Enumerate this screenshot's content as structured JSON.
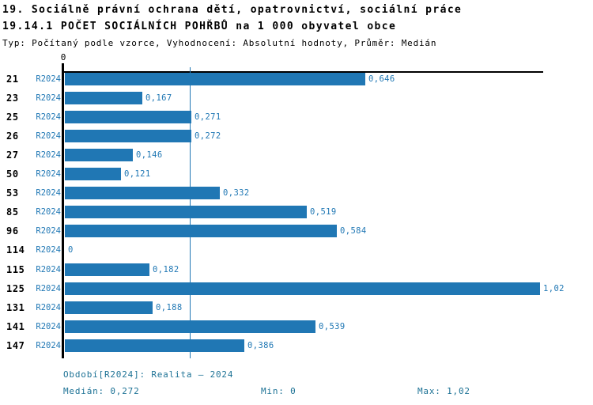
{
  "title": {
    "line1": "19. Sociálně právní ochrana dětí, opatrovnictví, sociální práce",
    "line2": "19.14.1 POČET SOCIÁLNÍCH POHŘBŮ na 1 000 obyvatel obce",
    "line3": "Typ: Počítaný podle vzorce, Vyhodnocení: Absolutní hodnoty, Průměr: Medián"
  },
  "chart_data": {
    "type": "bar",
    "orientation": "horizontal",
    "series_label": "R2024",
    "categories": [
      "21",
      "23",
      "25",
      "26",
      "27",
      "50",
      "53",
      "85",
      "96",
      "114",
      "115",
      "125",
      "131",
      "141",
      "147"
    ],
    "values": [
      0.646,
      0.167,
      0.271,
      0.272,
      0.146,
      0.121,
      0.332,
      0.519,
      0.584,
      0,
      0.182,
      1.02,
      0.188,
      0.539,
      0.386
    ],
    "value_labels": [
      "0,646",
      "0,167",
      "0,271",
      "0,272",
      "0,146",
      "0,121",
      "0,332",
      "0,519",
      "0,584",
      "0",
      "0,182",
      "1,02",
      "0,188",
      "0,539",
      "0,386"
    ],
    "x_axis_tick_labels": [
      "0"
    ],
    "xlim": [
      0,
      1.03
    ],
    "median_value": 0.272,
    "grid": false,
    "legend_position": "none",
    "bar_color": "#2077b4",
    "median_line_color": "#2077b4"
  },
  "footer": {
    "period": "Období[R2024]: Realita – 2024",
    "median_label": "Medián: 0,272",
    "min_label": "Min: 0",
    "max_label": "Max: 1,02"
  },
  "colors": {
    "bar_blue": "#2077b4",
    "text_blue": "#1f77b4",
    "footer_teal": "#1d7295",
    "axis_black": "#000000"
  }
}
